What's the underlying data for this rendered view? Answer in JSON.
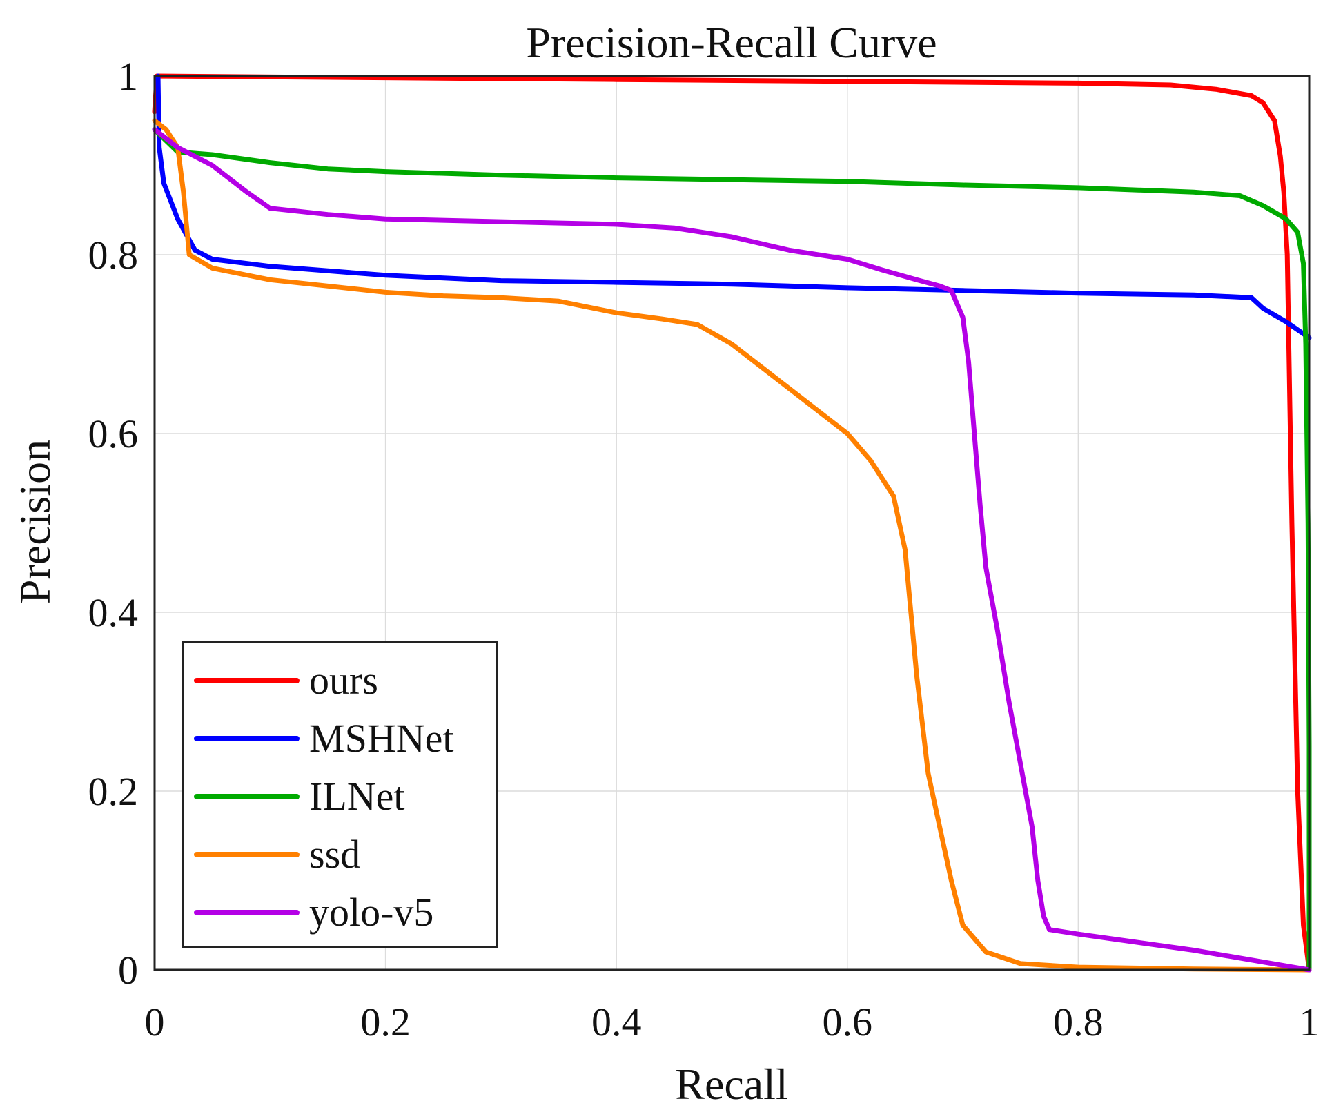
{
  "chart_data": {
    "type": "line",
    "title": "Precision-Recall Curve",
    "xlabel": "Recall",
    "ylabel": "Precision",
    "xlim": [
      0,
      1
    ],
    "ylim": [
      0,
      1
    ],
    "grid": true,
    "legend_position": "bottom-left",
    "x_ticks": [
      {
        "value": 0,
        "label": "0"
      },
      {
        "value": 0.2,
        "label": "0.2"
      },
      {
        "value": 0.4,
        "label": "0.4"
      },
      {
        "value": 0.6,
        "label": "0.6"
      },
      {
        "value": 0.8,
        "label": "0.8"
      },
      {
        "value": 1,
        "label": "1"
      }
    ],
    "y_ticks": [
      {
        "value": 0,
        "label": "0"
      },
      {
        "value": 0.2,
        "label": "0.2"
      },
      {
        "value": 0.4,
        "label": "0.4"
      },
      {
        "value": 0.6,
        "label": "0.6"
      },
      {
        "value": 0.8,
        "label": "0.8"
      },
      {
        "value": 1,
        "label": "1"
      }
    ],
    "series": [
      {
        "name": "ours",
        "color": "#ff0000",
        "points": [
          [
            0,
            0.96
          ],
          [
            0.002,
            1.0
          ],
          [
            0.2,
            0.998
          ],
          [
            0.4,
            0.996
          ],
          [
            0.6,
            0.994
          ],
          [
            0.8,
            0.992
          ],
          [
            0.88,
            0.99
          ],
          [
            0.92,
            0.985
          ],
          [
            0.95,
            0.978
          ],
          [
            0.96,
            0.97
          ],
          [
            0.97,
            0.95
          ],
          [
            0.975,
            0.91
          ],
          [
            0.978,
            0.87
          ],
          [
            0.981,
            0.8
          ],
          [
            0.985,
            0.5
          ],
          [
            0.99,
            0.2
          ],
          [
            0.995,
            0.05
          ],
          [
            1.0,
            0.0
          ]
        ]
      },
      {
        "name": "MSHNet",
        "color": "#0000ff",
        "points": [
          [
            0.003,
            1.0
          ],
          [
            0.004,
            0.92
          ],
          [
            0.008,
            0.88
          ],
          [
            0.02,
            0.84
          ],
          [
            0.035,
            0.805
          ],
          [
            0.05,
            0.795
          ],
          [
            0.1,
            0.787
          ],
          [
            0.2,
            0.777
          ],
          [
            0.3,
            0.771
          ],
          [
            0.4,
            0.769
          ],
          [
            0.5,
            0.767
          ],
          [
            0.6,
            0.763
          ],
          [
            0.7,
            0.76
          ],
          [
            0.8,
            0.757
          ],
          [
            0.9,
            0.755
          ],
          [
            0.95,
            0.752
          ],
          [
            0.96,
            0.74
          ],
          [
            0.98,
            0.725
          ],
          [
            1.0,
            0.707
          ]
        ]
      },
      {
        "name": "ILNet",
        "color": "#00aa00",
        "points": [
          [
            0,
            0.94
          ],
          [
            0.02,
            0.915
          ],
          [
            0.05,
            0.912
          ],
          [
            0.1,
            0.903
          ],
          [
            0.15,
            0.896
          ],
          [
            0.2,
            0.893
          ],
          [
            0.3,
            0.889
          ],
          [
            0.4,
            0.886
          ],
          [
            0.5,
            0.884
          ],
          [
            0.6,
            0.882
          ],
          [
            0.7,
            0.878
          ],
          [
            0.8,
            0.875
          ],
          [
            0.9,
            0.87
          ],
          [
            0.94,
            0.866
          ],
          [
            0.96,
            0.855
          ],
          [
            0.98,
            0.84
          ],
          [
            0.99,
            0.825
          ],
          [
            0.995,
            0.79
          ],
          [
            0.997,
            0.7
          ],
          [
            0.999,
            0.5
          ],
          [
            1.0,
            0.25
          ],
          [
            1.0,
            0.0
          ]
        ]
      },
      {
        "name": "ssd",
        "color": "#ff8000",
        "points": [
          [
            0,
            0.95
          ],
          [
            0.01,
            0.94
          ],
          [
            0.02,
            0.92
          ],
          [
            0.025,
            0.87
          ],
          [
            0.03,
            0.8
          ],
          [
            0.05,
            0.785
          ],
          [
            0.1,
            0.772
          ],
          [
            0.15,
            0.765
          ],
          [
            0.2,
            0.758
          ],
          [
            0.25,
            0.754
          ],
          [
            0.3,
            0.752
          ],
          [
            0.35,
            0.748
          ],
          [
            0.4,
            0.735
          ],
          [
            0.44,
            0.728
          ],
          [
            0.47,
            0.722
          ],
          [
            0.5,
            0.7
          ],
          [
            0.55,
            0.65
          ],
          [
            0.58,
            0.62
          ],
          [
            0.6,
            0.6
          ],
          [
            0.62,
            0.57
          ],
          [
            0.64,
            0.53
          ],
          [
            0.65,
            0.47
          ],
          [
            0.66,
            0.33
          ],
          [
            0.67,
            0.22
          ],
          [
            0.68,
            0.16
          ],
          [
            0.69,
            0.1
          ],
          [
            0.7,
            0.05
          ],
          [
            0.72,
            0.02
          ],
          [
            0.75,
            0.007
          ],
          [
            0.8,
            0.003
          ],
          [
            0.9,
            0.001
          ],
          [
            1.0,
            0.0
          ]
        ]
      },
      {
        "name": "yolo-v5",
        "color": "#b400e6",
        "points": [
          [
            0,
            0.94
          ],
          [
            0.02,
            0.92
          ],
          [
            0.05,
            0.9
          ],
          [
            0.08,
            0.87
          ],
          [
            0.1,
            0.852
          ],
          [
            0.15,
            0.845
          ],
          [
            0.2,
            0.84
          ],
          [
            0.3,
            0.837
          ],
          [
            0.4,
            0.834
          ],
          [
            0.45,
            0.83
          ],
          [
            0.5,
            0.82
          ],
          [
            0.55,
            0.805
          ],
          [
            0.6,
            0.795
          ],
          [
            0.63,
            0.783
          ],
          [
            0.66,
            0.772
          ],
          [
            0.68,
            0.765
          ],
          [
            0.69,
            0.76
          ],
          [
            0.7,
            0.73
          ],
          [
            0.705,
            0.68
          ],
          [
            0.71,
            0.6
          ],
          [
            0.715,
            0.52
          ],
          [
            0.72,
            0.45
          ],
          [
            0.73,
            0.38
          ],
          [
            0.74,
            0.3
          ],
          [
            0.75,
            0.23
          ],
          [
            0.76,
            0.16
          ],
          [
            0.765,
            0.1
          ],
          [
            0.77,
            0.06
          ],
          [
            0.775,
            0.045
          ],
          [
            0.8,
            0.04
          ],
          [
            0.9,
            0.022
          ],
          [
            1.0,
            0.0
          ]
        ]
      }
    ]
  }
}
